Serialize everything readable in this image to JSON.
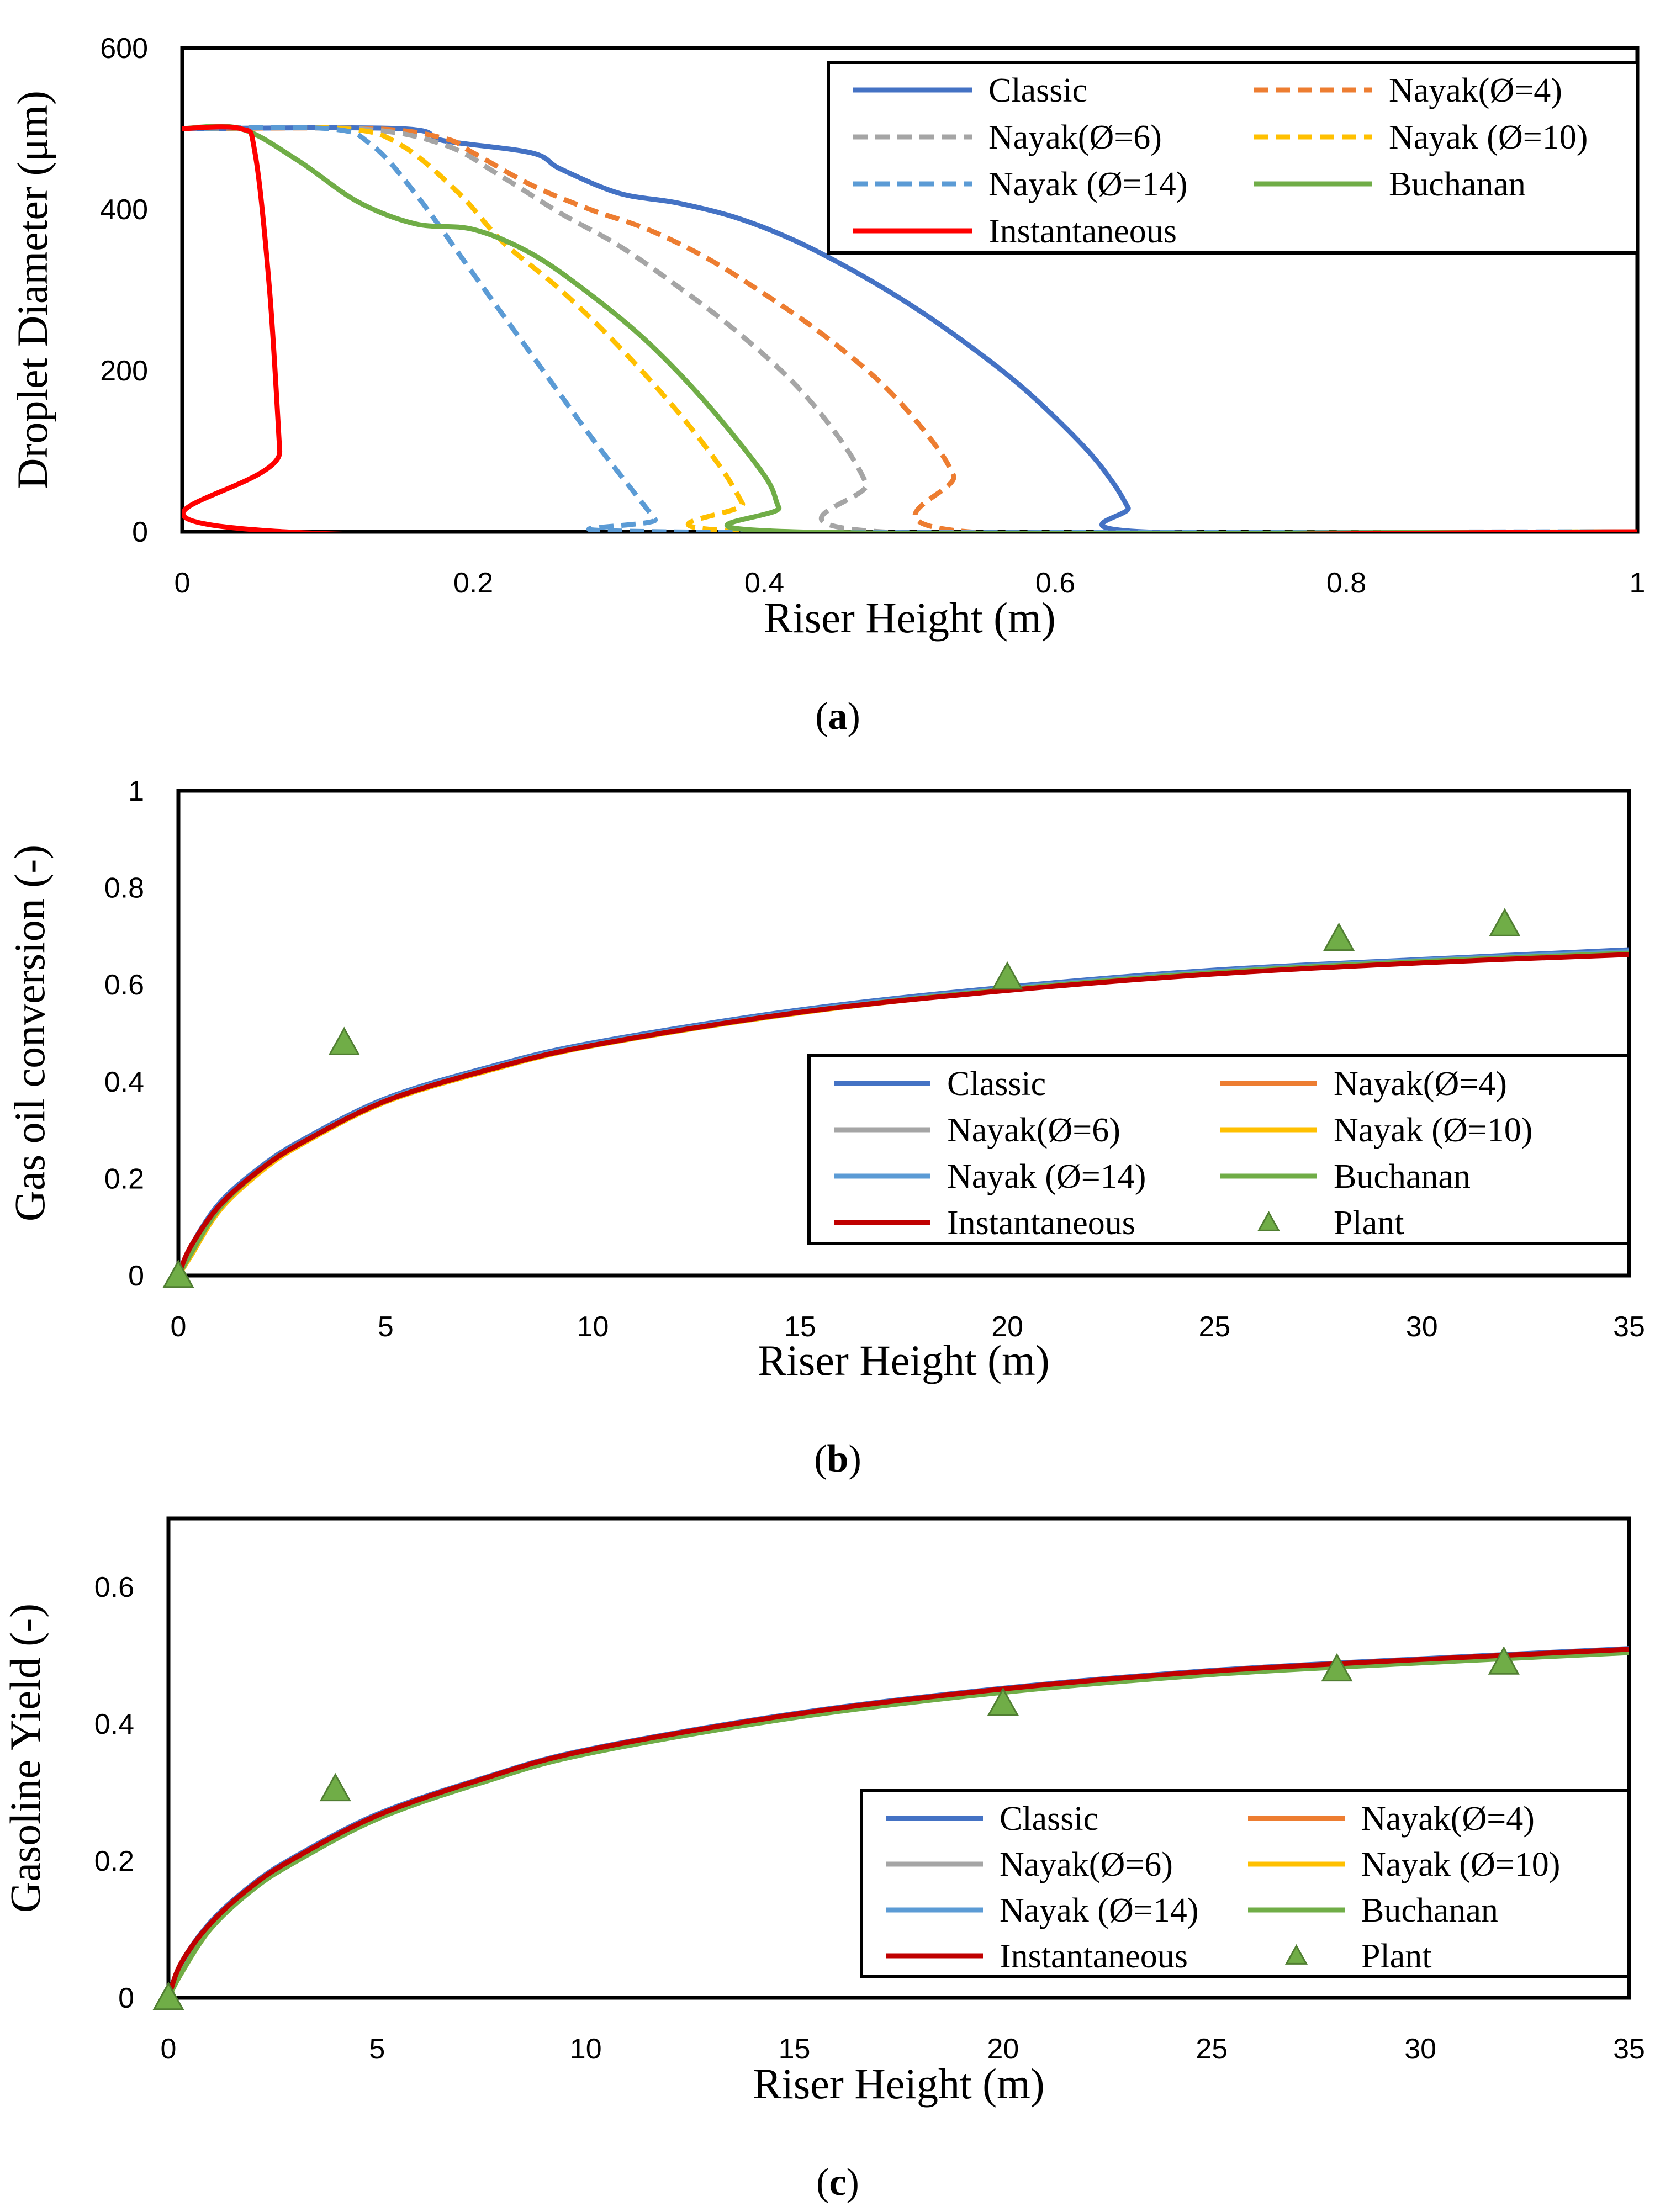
{
  "colors": {
    "classic": "#4472C4",
    "nayak4": "#ED7D31",
    "nayak6": "#A5A5A5",
    "nayak10": "#FFC000",
    "nayak14": "#5B9BD5",
    "buchanan": "#70AD47",
    "instantaneous_a": "#FF0000",
    "instantaneous_bc": "#C00000",
    "plant": "#70AD47"
  },
  "chart_data": [
    {
      "panel": "a",
      "type": "line",
      "caption": {
        "open": "(",
        "letter": "a",
        "close": ")"
      },
      "xlabel": "Riser Height (m)",
      "ylabel": "Droplet Diameter (μm)",
      "xlim": [
        0,
        1
      ],
      "ylim": [
        0,
        600
      ],
      "xticks": [
        "0",
        "0.2",
        "0.4",
        "0.6",
        "0.8",
        "1"
      ],
      "yticks": [
        "0",
        "200",
        "400",
        "600"
      ],
      "grid": false,
      "legend_position": "top-right",
      "series": [
        {
          "name": "Classic",
          "key": "classic",
          "dashed": false,
          "x": [
            0,
            0.15,
            0.18,
            0.24,
            0.26,
            0.3,
            0.34,
            0.38,
            0.42,
            0.46,
            0.5,
            0.54,
            0.58,
            0.62,
            0.64,
            0.65,
            0.66,
            1.0
          ],
          "y": [
            500,
            500,
            485,
            470,
            450,
            420,
            408,
            390,
            362,
            325,
            282,
            232,
            175,
            105,
            60,
            30,
            0,
            0
          ]
        },
        {
          "name": "Nayak(Ø=4)",
          "key": "nayak4",
          "dashed": true,
          "x": [
            0,
            0.13,
            0.18,
            0.2,
            0.24,
            0.28,
            0.32,
            0.36,
            0.4,
            0.44,
            0.48,
            0.51,
            0.53,
            0.54,
            1.0
          ],
          "y": [
            500,
            500,
            488,
            470,
            430,
            400,
            375,
            340,
            295,
            245,
            185,
            125,
            70,
            0,
            0
          ]
        },
        {
          "name": "Nayak(Ø=6)",
          "key": "nayak6",
          "dashed": true,
          "x": [
            0,
            0.12,
            0.18,
            0.22,
            0.26,
            0.3,
            0.34,
            0.38,
            0.42,
            0.45,
            0.47,
            0.48,
            1.0
          ],
          "y": [
            500,
            500,
            480,
            440,
            395,
            355,
            305,
            250,
            185,
            120,
            60,
            0,
            0
          ]
        },
        {
          "name": "Nayak (Ø=10)",
          "key": "nayak10",
          "dashed": true,
          "x": [
            0,
            0.11,
            0.15,
            0.19,
            0.22,
            0.26,
            0.3,
            0.34,
            0.37,
            0.385,
            0.395,
            1.0
          ],
          "y": [
            500,
            500,
            480,
            420,
            360,
            300,
            230,
            150,
            80,
            35,
            0,
            0
          ]
        },
        {
          "name": "Nayak (Ø=14)",
          "key": "nayak14",
          "dashed": true,
          "x": [
            0,
            0.1,
            0.13,
            0.16,
            0.2,
            0.24,
            0.28,
            0.31,
            0.325,
            0.33,
            1.0
          ],
          "y": [
            500,
            500,
            480,
            420,
            320,
            220,
            120,
            50,
            15,
            0,
            0
          ]
        },
        {
          "name": "Buchanan",
          "key": "buchanan",
          "dashed": false,
          "x": [
            0,
            0.04,
            0.08,
            0.12,
            0.16,
            0.2,
            0.24,
            0.28,
            0.32,
            0.36,
            0.4,
            0.41,
            0.42,
            1.0
          ],
          "y": [
            500,
            500,
            460,
            410,
            382,
            375,
            345,
            295,
            235,
            160,
            70,
            30,
            0,
            0
          ]
        },
        {
          "name": "Instantaneous",
          "key": "instantaneous_a",
          "dashed": false,
          "x": [
            0,
            0.04,
            0.05,
            0.06,
            0.067,
            0.07,
            1.0
          ],
          "y": [
            500,
            500,
            470,
            300,
            100,
            0,
            0
          ]
        }
      ]
    },
    {
      "panel": "b",
      "type": "line",
      "caption": {
        "open": "(",
        "letter": "b",
        "close": ")"
      },
      "xlabel": "Riser Height (m)",
      "ylabel": "Gas oil conversion (-)",
      "xlim": [
        0,
        35
      ],
      "ylim": [
        0,
        1
      ],
      "xticks": [
        "0",
        "5",
        "10",
        "15",
        "20",
        "25",
        "30",
        "35"
      ],
      "yticks": [
        "0",
        "0.2",
        "0.4",
        "0.6",
        "0.8",
        "1"
      ],
      "grid": false,
      "legend_position": "center-right",
      "series": [
        {
          "name": "Classic",
          "key": "classic",
          "x": [
            0,
            0.3,
            1,
            2,
            3,
            5,
            7.5,
            10,
            15,
            20,
            25,
            30,
            35
          ],
          "y": [
            0,
            0.06,
            0.15,
            0.225,
            0.28,
            0.365,
            0.43,
            0.48,
            0.548,
            0.595,
            0.63,
            0.652,
            0.672
          ]
        },
        {
          "name": "Nayak(Ø=4)",
          "key": "nayak4",
          "x": [
            0,
            0.3,
            1,
            2,
            3,
            5,
            7.5,
            10,
            15,
            20,
            25,
            30,
            35
          ],
          "y": [
            0,
            0.05,
            0.14,
            0.22,
            0.275,
            0.36,
            0.425,
            0.475,
            0.543,
            0.59,
            0.625,
            0.648,
            0.665
          ]
        },
        {
          "name": "Nayak(Ø=6)",
          "key": "nayak6",
          "x": [
            0,
            0.3,
            1,
            2,
            3,
            5,
            7.5,
            10,
            15,
            20,
            25,
            30,
            35
          ],
          "y": [
            0,
            0.04,
            0.135,
            0.215,
            0.272,
            0.358,
            0.423,
            0.474,
            0.542,
            0.589,
            0.624,
            0.647,
            0.664
          ]
        },
        {
          "name": "Nayak (Ø=10)",
          "key": "nayak10",
          "x": [
            0,
            0.3,
            1,
            2,
            3,
            5,
            7.5,
            10,
            15,
            20,
            25,
            30,
            35
          ],
          "y": [
            0,
            0.04,
            0.135,
            0.215,
            0.272,
            0.358,
            0.423,
            0.474,
            0.542,
            0.589,
            0.624,
            0.647,
            0.664
          ]
        },
        {
          "name": "Nayak (Ø=14)",
          "key": "nayak14",
          "x": [
            0,
            0.3,
            1,
            2,
            3,
            5,
            7.5,
            10,
            15,
            20,
            25,
            30,
            35
          ],
          "y": [
            0,
            0.045,
            0.14,
            0.22,
            0.276,
            0.362,
            0.427,
            0.477,
            0.545,
            0.592,
            0.627,
            0.65,
            0.668
          ]
        },
        {
          "name": "Buchanan",
          "key": "buchanan",
          "x": [
            0,
            0.3,
            1,
            2,
            3,
            5,
            7.5,
            10,
            15,
            20,
            25,
            30,
            35
          ],
          "y": [
            0,
            0.045,
            0.14,
            0.22,
            0.275,
            0.36,
            0.425,
            0.475,
            0.543,
            0.59,
            0.625,
            0.648,
            0.665
          ]
        },
        {
          "name": "Instantaneous",
          "key": "instantaneous_bc",
          "x": [
            0,
            0.3,
            1,
            2,
            3,
            5,
            7.5,
            10,
            15,
            20,
            25,
            30,
            35
          ],
          "y": [
            0,
            0.06,
            0.145,
            0.22,
            0.275,
            0.36,
            0.425,
            0.475,
            0.543,
            0.588,
            0.622,
            0.645,
            0.662
          ]
        }
      ],
      "scatter": {
        "name": "Plant",
        "key": "plant",
        "x": [
          0,
          4,
          20,
          28,
          32
        ],
        "y": [
          0,
          0.48,
          0.615,
          0.695,
          0.725
        ]
      }
    },
    {
      "panel": "c",
      "type": "line",
      "caption": {
        "open": "(",
        "letter": "c",
        "close": ")"
      },
      "xlabel": "Riser Height (m)",
      "ylabel": "Gasoline Yield (-)",
      "xlim": [
        0,
        35
      ],
      "ylim": [
        0,
        0.7
      ],
      "xticks": [
        "0",
        "5",
        "10",
        "15",
        "20",
        "25",
        "30",
        "35"
      ],
      "yticks": [
        "0",
        "0.2",
        "0.4",
        "0.6"
      ],
      "grid": false,
      "legend_position": "bottom-right",
      "series": [
        {
          "name": "Classic",
          "key": "classic",
          "x": [
            0,
            0.3,
            1,
            2,
            3,
            5,
            7.5,
            10,
            15,
            20,
            25,
            30,
            35
          ],
          "y": [
            0,
            0.05,
            0.11,
            0.165,
            0.205,
            0.268,
            0.32,
            0.362,
            0.415,
            0.452,
            0.478,
            0.495,
            0.51
          ]
        },
        {
          "name": "Nayak(Ø=4)",
          "key": "nayak4",
          "x": [
            0,
            0.3,
            1,
            2,
            3,
            5,
            7.5,
            10,
            15,
            20,
            25,
            30,
            35
          ],
          "y": [
            0,
            0.04,
            0.105,
            0.16,
            0.2,
            0.264,
            0.317,
            0.359,
            0.412,
            0.449,
            0.475,
            0.492,
            0.507
          ]
        },
        {
          "name": "Nayak(Ø=6)",
          "key": "nayak6",
          "x": [
            0,
            0.3,
            1,
            2,
            3,
            5,
            7.5,
            10,
            15,
            20,
            25,
            30,
            35
          ],
          "y": [
            0,
            0.035,
            0.1,
            0.158,
            0.198,
            0.262,
            0.315,
            0.357,
            0.41,
            0.447,
            0.473,
            0.49,
            0.505
          ]
        },
        {
          "name": "Nayak (Ø=10)",
          "key": "nayak10",
          "x": [
            0,
            0.3,
            1,
            2,
            3,
            5,
            7.5,
            10,
            15,
            20,
            25,
            30,
            35
          ],
          "y": [
            0,
            0.035,
            0.1,
            0.158,
            0.198,
            0.262,
            0.315,
            0.357,
            0.41,
            0.447,
            0.473,
            0.49,
            0.505
          ]
        },
        {
          "name": "Nayak (Ø=14)",
          "key": "nayak14",
          "x": [
            0,
            0.3,
            1,
            2,
            3,
            5,
            7.5,
            10,
            15,
            20,
            25,
            30,
            35
          ],
          "y": [
            0,
            0.04,
            0.105,
            0.16,
            0.2,
            0.265,
            0.318,
            0.36,
            0.413,
            0.45,
            0.476,
            0.493,
            0.508
          ]
        },
        {
          "name": "Buchanan",
          "key": "buchanan",
          "x": [
            0,
            0.3,
            1,
            2,
            3,
            5,
            7.5,
            10,
            15,
            20,
            25,
            30,
            35
          ],
          "y": [
            0,
            0.035,
            0.1,
            0.157,
            0.197,
            0.261,
            0.314,
            0.356,
            0.409,
            0.446,
            0.472,
            0.489,
            0.504
          ]
        },
        {
          "name": "Instantaneous",
          "key": "instantaneous_bc",
          "x": [
            0,
            0.3,
            1,
            2,
            3,
            5,
            7.5,
            10,
            15,
            20,
            25,
            30,
            35
          ],
          "y": [
            0,
            0.05,
            0.108,
            0.163,
            0.203,
            0.266,
            0.319,
            0.361,
            0.414,
            0.451,
            0.477,
            0.494,
            0.509
          ]
        }
      ],
      "scatter": {
        "name": "Plant",
        "key": "plant",
        "x": [
          0,
          4,
          20,
          28,
          32
        ],
        "y": [
          0,
          0.305,
          0.43,
          0.48,
          0.49
        ]
      }
    }
  ]
}
